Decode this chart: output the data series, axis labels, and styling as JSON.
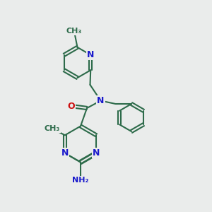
{
  "bg_color": "#eaeceb",
  "bond_color": "#2d6b4a",
  "bond_width": 1.5,
  "atom_colors": {
    "N": "#1a1acc",
    "O": "#cc1111",
    "C": "#2d6b4a"
  },
  "font_size": 9,
  "xlim": [
    0,
    10
  ],
  "ylim": [
    0,
    10
  ]
}
